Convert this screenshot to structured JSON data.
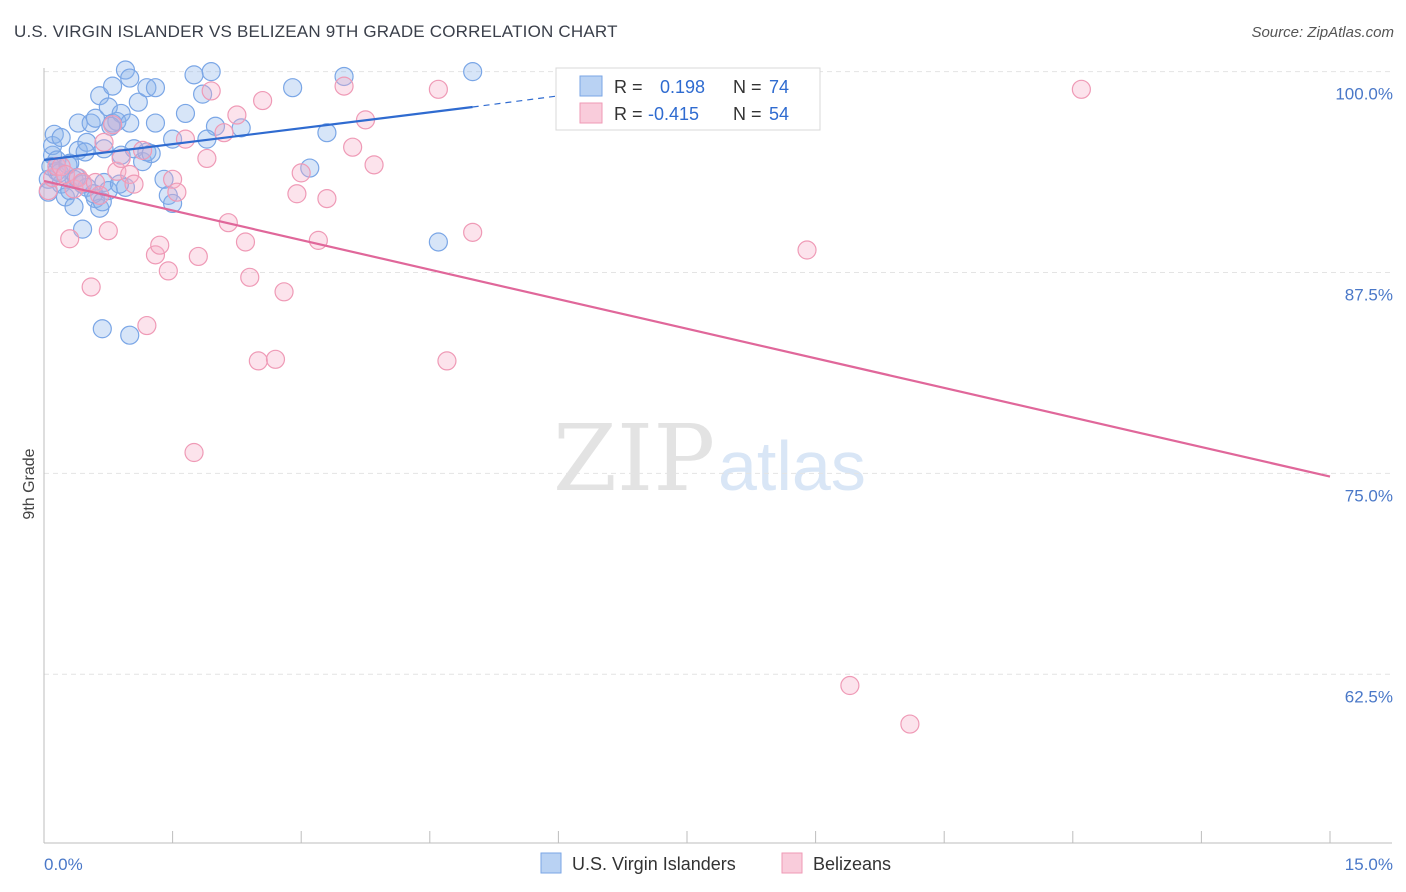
{
  "title": "U.S. VIRGIN ISLANDER VS BELIZEAN 9TH GRADE CORRELATION CHART",
  "source": "Source: ZipAtlas.com",
  "watermark": {
    "zip": "ZIP",
    "atlas": "atlas"
  },
  "chart_data": {
    "type": "scatter",
    "xlabel": "",
    "ylabel": "9th Grade",
    "xlim": [
      0,
      15
    ],
    "ylim": [
      52,
      100.6
    ],
    "x_tick_labels": [
      {
        "value": 0,
        "label": "0.0%"
      },
      {
        "value": 15,
        "label": "15.0%"
      }
    ],
    "x_minor_ticks": [
      1.5,
      3.0,
      4.5,
      6.0,
      7.5,
      9.0,
      10.5,
      12.0,
      13.5,
      15.0
    ],
    "y_ticks": [
      {
        "value": 100,
        "label": "100.0%"
      },
      {
        "value": 87.5,
        "label": "87.5%"
      },
      {
        "value": 75,
        "label": "75.0%"
      },
      {
        "value": 62.5,
        "label": "62.5%"
      }
    ],
    "grid": true,
    "legend": {
      "placement": "top-center",
      "entries": [
        {
          "r_label": "R =",
          "r_value": "0.198",
          "n_label": "N =",
          "n_value": "74",
          "color": "#a9c6ef"
        },
        {
          "r_label": "R =",
          "r_value": "-0.415",
          "n_label": "N =",
          "n_value": "54",
          "color": "#f5b8cc"
        }
      ]
    },
    "series": [
      {
        "name": "U.S. Virgin Islanders",
        "color": "#7aa6e6",
        "fill": "rgba(140,180,235,0.35)",
        "line_color": "#2f6bd0",
        "trend": {
          "x0": 0,
          "y0": 94.5,
          "x1": 5.0,
          "y1": 97.8,
          "dash_to_x": 6.3,
          "dash_to_y": 98.7
        },
        "points": [
          [
            0.05,
            93.3
          ],
          [
            0.05,
            92.5
          ],
          [
            0.1,
            94.8
          ],
          [
            0.1,
            95.4
          ],
          [
            0.12,
            96.1
          ],
          [
            0.15,
            94.5
          ],
          [
            0.15,
            93.8
          ],
          [
            0.2,
            95.9
          ],
          [
            0.2,
            93.0
          ],
          [
            0.25,
            92.2
          ],
          [
            0.3,
            94.3
          ],
          [
            0.3,
            92.6
          ],
          [
            0.35,
            91.6
          ],
          [
            0.35,
            93.3
          ],
          [
            0.4,
            96.8
          ],
          [
            0.4,
            95.1
          ],
          [
            0.45,
            93.0
          ],
          [
            0.45,
            90.2
          ],
          [
            0.5,
            92.8
          ],
          [
            0.5,
            95.6
          ],
          [
            0.55,
            96.8
          ],
          [
            0.6,
            97.1
          ],
          [
            0.6,
            92.1
          ],
          [
            0.65,
            98.5
          ],
          [
            0.65,
            91.5
          ],
          [
            0.7,
            95.2
          ],
          [
            0.7,
            93.1
          ],
          [
            0.75,
            97.8
          ],
          [
            0.75,
            92.6
          ],
          [
            0.8,
            99.1
          ],
          [
            0.8,
            96.8
          ],
          [
            0.85,
            96.9
          ],
          [
            0.9,
            97.4
          ],
          [
            0.9,
            94.8
          ],
          [
            0.95,
            92.8
          ],
          [
            0.95,
            100.1
          ],
          [
            1.0,
            99.6
          ],
          [
            1.0,
            96.8
          ],
          [
            1.05,
            95.2
          ],
          [
            1.1,
            98.1
          ],
          [
            1.15,
            94.4
          ],
          [
            1.2,
            99.0
          ],
          [
            1.2,
            95.0
          ],
          [
            1.25,
            94.9
          ],
          [
            1.3,
            99.0
          ],
          [
            1.3,
            96.8
          ],
          [
            1.4,
            93.3
          ],
          [
            1.45,
            92.3
          ],
          [
            1.5,
            91.8
          ],
          [
            1.5,
            95.8
          ],
          [
            1.65,
            97.4
          ],
          [
            1.75,
            99.8
          ],
          [
            1.85,
            98.6
          ],
          [
            1.95,
            100.0
          ],
          [
            2.0,
            96.6
          ],
          [
            1.9,
            95.8
          ],
          [
            0.68,
            84.0
          ],
          [
            1.0,
            83.6
          ],
          [
            2.3,
            96.5
          ],
          [
            2.9,
            99.0
          ],
          [
            3.1,
            94.0
          ],
          [
            3.3,
            96.2
          ],
          [
            3.5,
            99.7
          ],
          [
            4.6,
            89.4
          ],
          [
            5.0,
            100.0
          ],
          [
            0.08,
            94.1
          ],
          [
            0.18,
            93.7
          ],
          [
            0.28,
            94.2
          ],
          [
            0.38,
            93.4
          ],
          [
            0.48,
            95.0
          ],
          [
            0.58,
            92.4
          ],
          [
            0.68,
            91.9
          ],
          [
            0.78,
            96.6
          ],
          [
            0.88,
            93.0
          ]
        ]
      },
      {
        "name": "Belizeans",
        "color": "#ef9ab6",
        "fill": "rgba(245,175,200,0.35)",
        "line_color": "#e0679a",
        "trend": {
          "x0": 0,
          "y0": 93.2,
          "x1": 15.0,
          "y1": 74.8
        },
        "points": [
          [
            0.05,
            92.6
          ],
          [
            0.1,
            93.4
          ],
          [
            0.15,
            94.1
          ],
          [
            0.2,
            94.1
          ],
          [
            0.25,
            93.6
          ],
          [
            0.3,
            89.6
          ],
          [
            0.35,
            92.7
          ],
          [
            0.4,
            93.4
          ],
          [
            0.45,
            93.1
          ],
          [
            0.55,
            86.6
          ],
          [
            0.6,
            93.1
          ],
          [
            0.65,
            92.3
          ],
          [
            0.7,
            95.6
          ],
          [
            0.75,
            90.1
          ],
          [
            0.8,
            96.7
          ],
          [
            0.85,
            93.8
          ],
          [
            0.9,
            94.6
          ],
          [
            1.0,
            93.6
          ],
          [
            1.05,
            93.0
          ],
          [
            1.15,
            95.1
          ],
          [
            1.2,
            84.2
          ],
          [
            1.3,
            88.6
          ],
          [
            1.35,
            89.2
          ],
          [
            1.45,
            87.6
          ],
          [
            1.5,
            93.3
          ],
          [
            1.55,
            92.5
          ],
          [
            1.65,
            95.8
          ],
          [
            1.75,
            76.3
          ],
          [
            1.8,
            88.5
          ],
          [
            1.9,
            94.6
          ],
          [
            1.95,
            98.8
          ],
          [
            2.1,
            96.2
          ],
          [
            2.15,
            90.6
          ],
          [
            2.25,
            97.3
          ],
          [
            2.35,
            89.4
          ],
          [
            2.4,
            87.2
          ],
          [
            2.5,
            82.0
          ],
          [
            2.55,
            98.2
          ],
          [
            2.7,
            82.1
          ],
          [
            2.8,
            86.3
          ],
          [
            2.95,
            92.4
          ],
          [
            3.0,
            93.7
          ],
          [
            3.2,
            89.5
          ],
          [
            3.3,
            92.1
          ],
          [
            3.5,
            99.1
          ],
          [
            3.6,
            95.3
          ],
          [
            3.75,
            97.0
          ],
          [
            3.85,
            94.2
          ],
          [
            4.6,
            98.9
          ],
          [
            4.7,
            82.0
          ],
          [
            5.0,
            90.0
          ],
          [
            8.9,
            88.9
          ],
          [
            9.4,
            61.8
          ],
          [
            10.1,
            59.4
          ],
          [
            12.1,
            98.9
          ]
        ]
      }
    ]
  },
  "bottom_legend": [
    {
      "label": "U.S. Virgin Islanders"
    },
    {
      "label": "Belizeans"
    }
  ]
}
